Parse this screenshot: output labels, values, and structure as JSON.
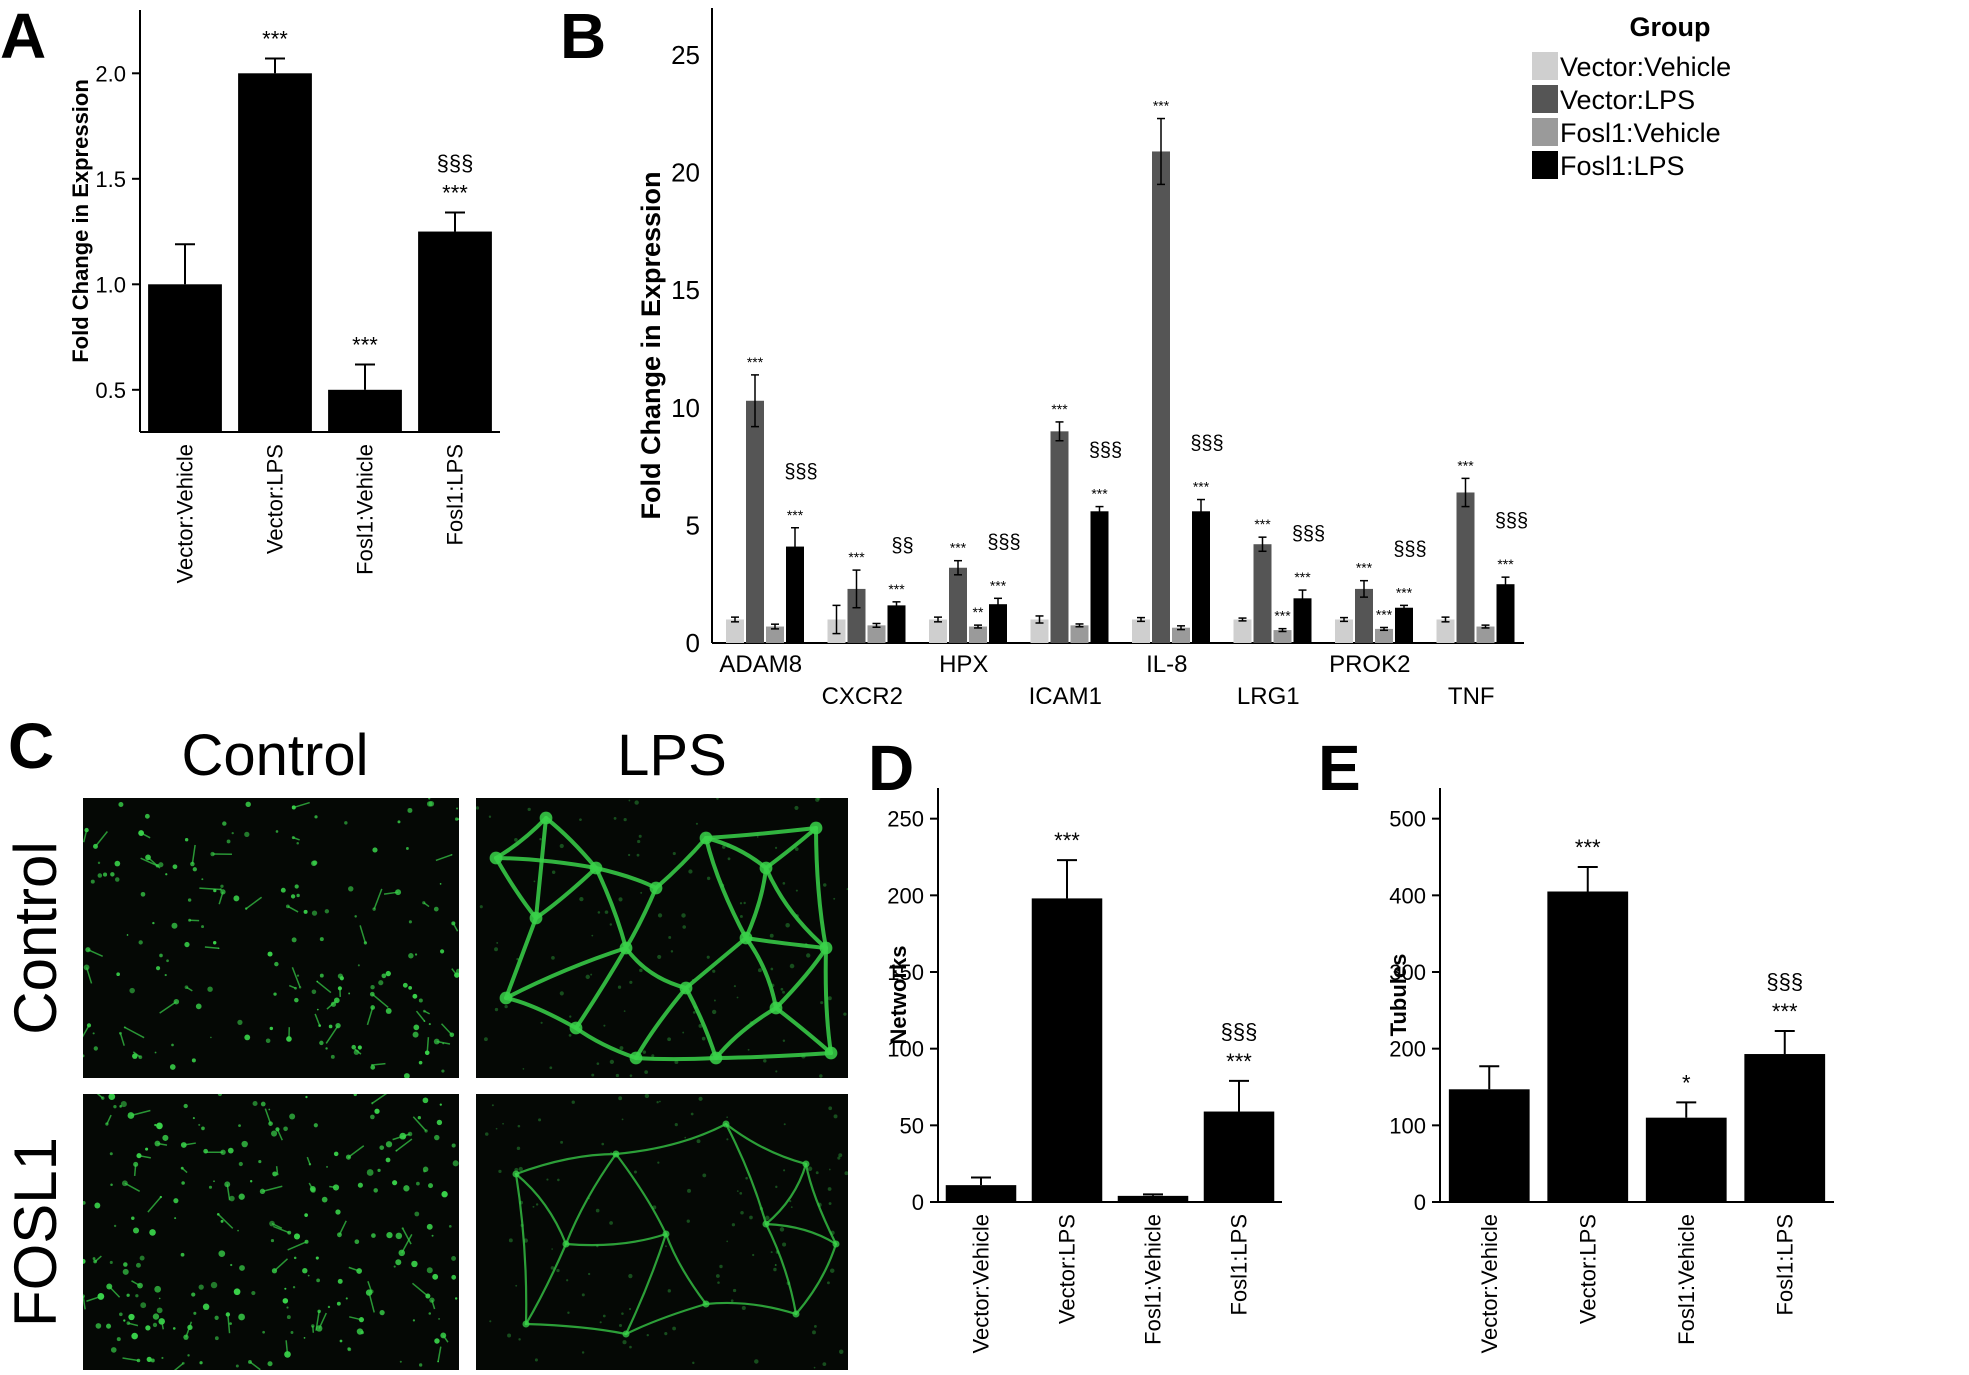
{
  "panels": {
    "A": "A",
    "B": "B",
    "C": "C",
    "D": "D",
    "E": "E"
  },
  "panel_c": {
    "column_labels": [
      "Control",
      "LPS"
    ],
    "row_labels": [
      "Control",
      "FOSL1"
    ],
    "fluorescence_color": "#39d24a"
  },
  "colors": {
    "bar_black": "#000000",
    "vector_vehicle": "#cfcfcf",
    "vector_lps": "#555555",
    "fosl1_vehicle": "#9a9a9a",
    "fosl1_lps": "#000000"
  },
  "chart_data": [
    {
      "id": "A",
      "type": "bar",
      "categories": [
        "Vector:Vehicle",
        "Vector:LPS",
        "Fosl1:Vehicle",
        "Fosl1:LPS"
      ],
      "values": [
        1.0,
        2.0,
        0.5,
        1.25
      ],
      "errors": [
        0.19,
        0.07,
        0.12,
        0.09
      ],
      "annotations": [
        [],
        [
          "***"
        ],
        [
          "***"
        ],
        [
          "***",
          "§§§"
        ]
      ],
      "ylabel": "Fold Change in Expression",
      "ylim": [
        0.3,
        2.3
      ],
      "yticks": [
        "0.5",
        "1.0",
        "1.5",
        "2.0"
      ]
    },
    {
      "id": "B",
      "type": "bar",
      "categories": [
        "ADAM8",
        "CXCR2",
        "HPX",
        "ICAM1",
        "IL-8",
        "LRG1",
        "PROK2",
        "TNF"
      ],
      "series": [
        {
          "name": "Vector:Vehicle",
          "values": [
            1.0,
            1.0,
            1.0,
            1.0,
            1.0,
            1.0,
            1.0,
            1.0
          ],
          "errors": [
            0.1,
            0.6,
            0.1,
            0.15,
            0.08,
            0.06,
            0.08,
            0.1
          ]
        },
        {
          "name": "Vector:LPS",
          "values": [
            10.3,
            2.3,
            3.2,
            9.0,
            20.9,
            4.2,
            2.3,
            6.4
          ],
          "errors": [
            1.1,
            0.8,
            0.3,
            0.4,
            1.4,
            0.3,
            0.35,
            0.6
          ]
        },
        {
          "name": "Fosl1:Vehicle",
          "values": [
            0.7,
            0.75,
            0.7,
            0.75,
            0.65,
            0.55,
            0.6,
            0.7
          ],
          "errors": [
            0.1,
            0.08,
            0.06,
            0.06,
            0.08,
            0.06,
            0.06,
            0.06
          ]
        },
        {
          "name": "Fosl1:LPS",
          "values": [
            4.1,
            1.6,
            1.65,
            5.6,
            5.6,
            1.9,
            1.5,
            2.5
          ],
          "errors": [
            0.8,
            0.15,
            0.25,
            0.2,
            0.5,
            0.35,
            0.1,
            0.3
          ]
        }
      ],
      "annotations": [
        [
          "",
          "***",
          "",
          "***|§§§"
        ],
        [
          "",
          "***",
          "",
          "***|§§"
        ],
        [
          "",
          "***",
          "**",
          "***|§§§"
        ],
        [
          "",
          "***",
          "",
          "***|§§§"
        ],
        [
          "",
          "***",
          "",
          "***|§§§"
        ],
        [
          "",
          "***",
          "***",
          "***|§§§"
        ],
        [
          "",
          "***",
          "***",
          "***|§§§"
        ],
        [
          "",
          "***",
          "",
          "***|§§§"
        ]
      ],
      "ylabel": "Fold Change in Expression",
      "ylim": [
        0,
        27
      ],
      "yticks": [
        "0",
        "5",
        "10",
        "15",
        "20",
        "25"
      ],
      "legend": {
        "title": "Group",
        "entries": [
          "Vector:Vehicle",
          "Vector:LPS",
          "Fosl1:Vehicle",
          "Fosl1:LPS"
        ],
        "position": "top-right"
      }
    },
    {
      "id": "D",
      "type": "bar",
      "categories": [
        "Vector:Vehicle",
        "Vector:LPS",
        "Fosl1:Vehicle",
        "Fosl1:LPS"
      ],
      "values": [
        11,
        198,
        4,
        59
      ],
      "errors": [
        5,
        25,
        1,
        20
      ],
      "annotations": [
        [],
        [
          "***"
        ],
        [],
        [
          "***",
          "§§§"
        ]
      ],
      "ylabel": "Networks",
      "ylim": [
        0,
        270
      ],
      "yticks": [
        "0",
        "50",
        "100",
        "150",
        "200",
        "250"
      ]
    },
    {
      "id": "E",
      "type": "bar",
      "categories": [
        "Vector:Vehicle",
        "Vector:LPS",
        "Fosl1:Vehicle",
        "Fosl1:LPS"
      ],
      "values": [
        147,
        405,
        110,
        193
      ],
      "errors": [
        30,
        32,
        20,
        30
      ],
      "annotations": [
        [],
        [
          "***"
        ],
        [
          "*"
        ],
        [
          "***",
          "§§§"
        ]
      ],
      "ylabel": "Tubules",
      "ylim": [
        0,
        540
      ],
      "yticks": [
        "0",
        "100",
        "200",
        "300",
        "400",
        "500"
      ]
    }
  ]
}
